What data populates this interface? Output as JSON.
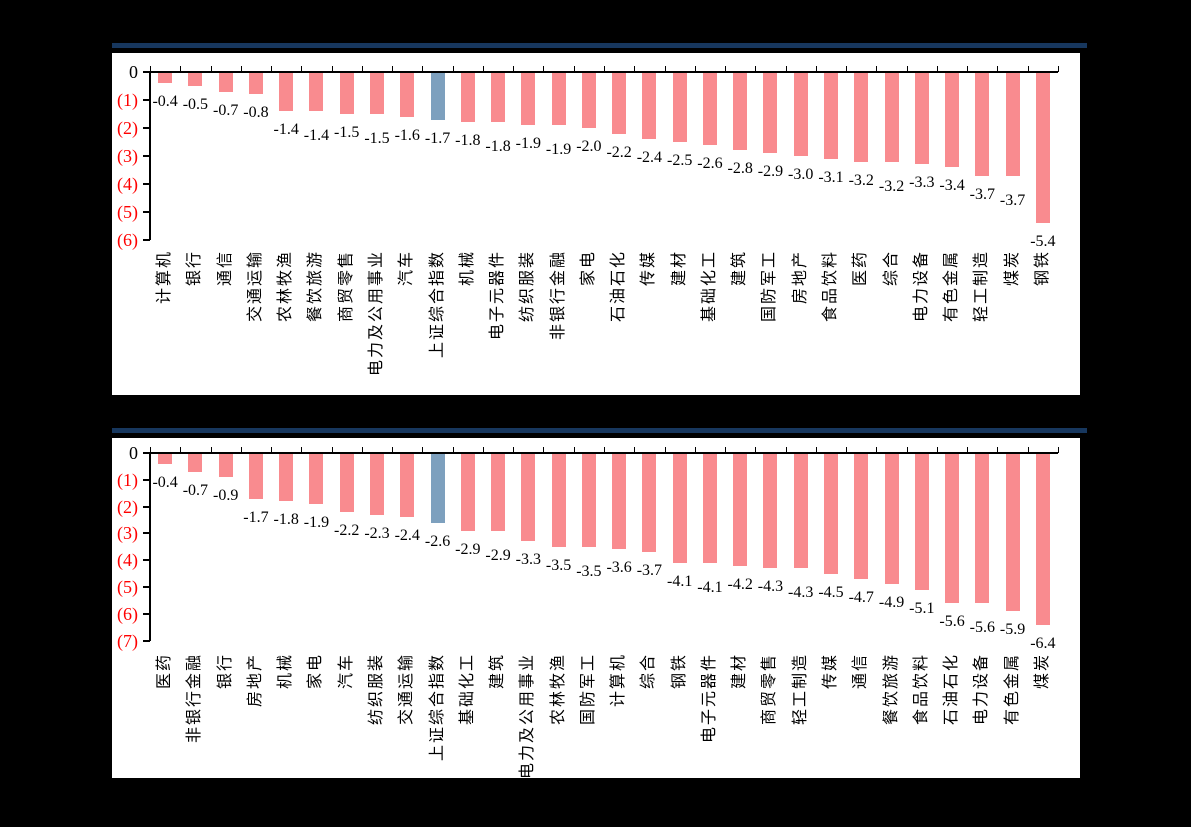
{
  "colors": {
    "background": "#000000",
    "panel": "#ffffff",
    "rule": "#17375E",
    "bar": "#F98B8F",
    "highlight_bar": "#7DA0BE",
    "axis": "#000000",
    "ytick_zero": "#000000",
    "ytick_negative": "#FF0000",
    "value_label": "#000000",
    "category_label": "#000000"
  },
  "chart_data": [
    {
      "type": "bar",
      "title": "",
      "xlabel": "",
      "ylabel": "",
      "ylim": [
        0,
        -6
      ],
      "yticks": [
        "0",
        "(1)",
        "(2)",
        "(3)",
        "(4)",
        "(5)",
        "(6)"
      ],
      "grid": false,
      "legend": null,
      "highlight_category": "上证综合指数",
      "categories": [
        "计算机",
        "银行",
        "通信",
        "交通运输",
        "农林牧渔",
        "餐饮旅游",
        "商贸零售",
        "电力及公用事业",
        "汽车",
        "上证综合指数",
        "机械",
        "电子元器件",
        "纺织服装",
        "非银行金融",
        "家电",
        "石油石化",
        "传媒",
        "建材",
        "基础化工",
        "建筑",
        "国防军工",
        "房地产",
        "食品饮料",
        "医药",
        "综合",
        "电力设备",
        "有色金属",
        "轻工制造",
        "煤炭",
        "钢铁"
      ],
      "values": [
        -0.4,
        -0.5,
        -0.7,
        -0.8,
        -1.4,
        -1.4,
        -1.5,
        -1.5,
        -1.6,
        -1.7,
        -1.8,
        -1.8,
        -1.9,
        -1.9,
        -2.0,
        -2.2,
        -2.4,
        -2.5,
        -2.6,
        -2.8,
        -2.9,
        -3.0,
        -3.1,
        -3.2,
        -3.2,
        -3.3,
        -3.4,
        -3.7,
        -3.7,
        -5.4
      ]
    },
    {
      "type": "bar",
      "title": "",
      "xlabel": "",
      "ylabel": "",
      "ylim": [
        0,
        -7
      ],
      "yticks": [
        "0",
        "(1)",
        "(2)",
        "(3)",
        "(4)",
        "(5)",
        "(6)",
        "(7)"
      ],
      "grid": false,
      "legend": null,
      "highlight_category": "上证综合指数",
      "categories": [
        "医药",
        "非银行金融",
        "银行",
        "房地产",
        "机械",
        "家电",
        "汽车",
        "纺织服装",
        "交通运输",
        "上证综合指数",
        "基础化工",
        "建筑",
        "电力及公用事业",
        "农林牧渔",
        "国防军工",
        "计算机",
        "综合",
        "钢铁",
        "电子元器件",
        "建材",
        "商贸零售",
        "轻工制造",
        "传媒",
        "通信",
        "餐饮旅游",
        "食品饮料",
        "石油石化",
        "电力设备",
        "有色金属",
        "煤炭"
      ],
      "values": [
        -0.4,
        -0.7,
        -0.9,
        -1.7,
        -1.8,
        -1.9,
        -2.2,
        -2.3,
        -2.4,
        -2.6,
        -2.9,
        -2.9,
        -3.3,
        -3.5,
        -3.5,
        -3.6,
        -3.7,
        -4.1,
        -4.1,
        -4.2,
        -4.3,
        -4.3,
        -4.5,
        -4.7,
        -4.9,
        -5.1,
        -5.6,
        -5.6,
        -5.9,
        -6.4
      ]
    }
  ]
}
